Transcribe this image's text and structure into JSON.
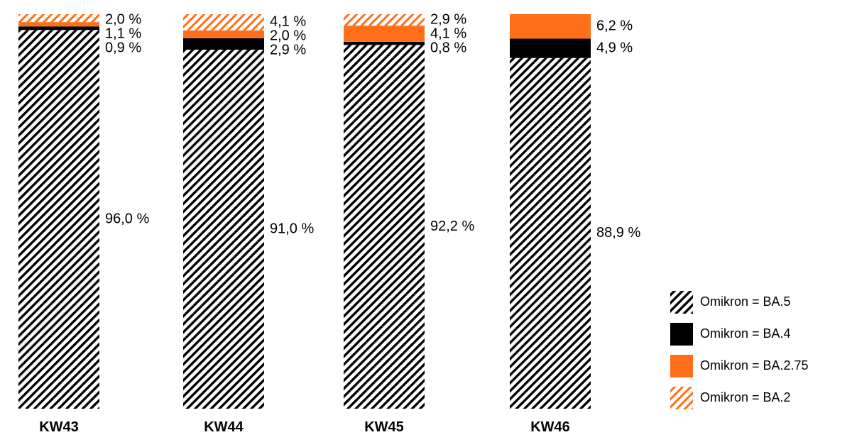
{
  "chart_data": {
    "type": "bar",
    "stacked": true,
    "categories": [
      "KW43",
      "KW44",
      "KW45",
      "KW46"
    ],
    "series": [
      {
        "name": "Omikron = BA.5",
        "pattern": "black-hatch",
        "values": [
          96.0,
          91.0,
          92.2,
          88.9
        ],
        "labels": [
          "96,0 %",
          "91,0 %",
          "92,2 %",
          "88,9 %"
        ]
      },
      {
        "name": "Omikron = BA.4",
        "pattern": "solid-black",
        "values": [
          0.9,
          2.9,
          0.8,
          4.9
        ],
        "labels": [
          "0,9 %",
          "2,9 %",
          "0,8 %",
          "4,9 %"
        ]
      },
      {
        "name": "Omikron = BA.2.75",
        "pattern": "solid-orange",
        "values": [
          1.1,
          2.0,
          4.1,
          6.2
        ],
        "labels": [
          "1,1 %",
          "2,0 %",
          "4,1 %",
          "6,2 %"
        ]
      },
      {
        "name": "Omikron = BA.2",
        "pattern": "orange-hatch",
        "values": [
          2.0,
          4.1,
          2.9,
          0
        ],
        "labels": [
          "2,0 %",
          "4,1 %",
          "2,9 %",
          ""
        ]
      }
    ],
    "ylim": [
      0,
      100
    ],
    "grid": false,
    "legend_position": "bottom-right",
    "colors": {
      "black": "#000000",
      "orange": "#ff6f1a"
    }
  }
}
